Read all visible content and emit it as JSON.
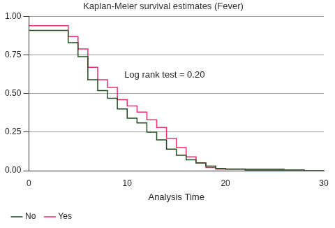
{
  "chart_data": {
    "type": "line",
    "title": "Kaplan-Meier survival estimates (Fever)",
    "x_label": "Analysis Time",
    "annotation": "Log rank test = 0.20",
    "series": [
      {
        "name": "No",
        "color": "#1f4d1f",
        "x": [
          0,
          4,
          5,
          6,
          7,
          8,
          9,
          10,
          11,
          12,
          13,
          14,
          15,
          16,
          17,
          18,
          19,
          20,
          22,
          28,
          30
        ],
        "values": [
          1.0,
          0.91,
          0.83,
          0.74,
          0.59,
          0.52,
          0.47,
          0.4,
          0.34,
          0.31,
          0.25,
          0.2,
          0.14,
          0.1,
          0.07,
          0.05,
          0.03,
          0.015,
          0.01,
          0.005,
          0.0
        ]
      },
      {
        "name": "Yes",
        "color": "#e8336b",
        "x": [
          0,
          4,
          5,
          6,
          7,
          8,
          9,
          10,
          11,
          12,
          13,
          14,
          15,
          16,
          17,
          18,
          19,
          20,
          26
        ],
        "values": [
          1.0,
          0.94,
          0.87,
          0.79,
          0.67,
          0.59,
          0.54,
          0.46,
          0.42,
          0.38,
          0.33,
          0.28,
          0.21,
          0.15,
          0.09,
          0.05,
          0.02,
          0.01,
          0.01
        ]
      }
    ],
    "xlim": [
      0,
      30
    ],
    "xticks": [
      0,
      10,
      20,
      30
    ],
    "ylim": [
      0,
      1
    ],
    "yticks": [
      {
        "value": 0,
        "label": "0.00"
      },
      {
        "value": 0.25,
        "label": "0.25"
      },
      {
        "value": 0.5,
        "label": "0.50"
      },
      {
        "value": 0.75,
        "label": "0.75"
      },
      {
        "value": 1,
        "label": "1.00"
      }
    ],
    "grid": true,
    "legend": "bottom",
    "line_style": "stepped"
  }
}
